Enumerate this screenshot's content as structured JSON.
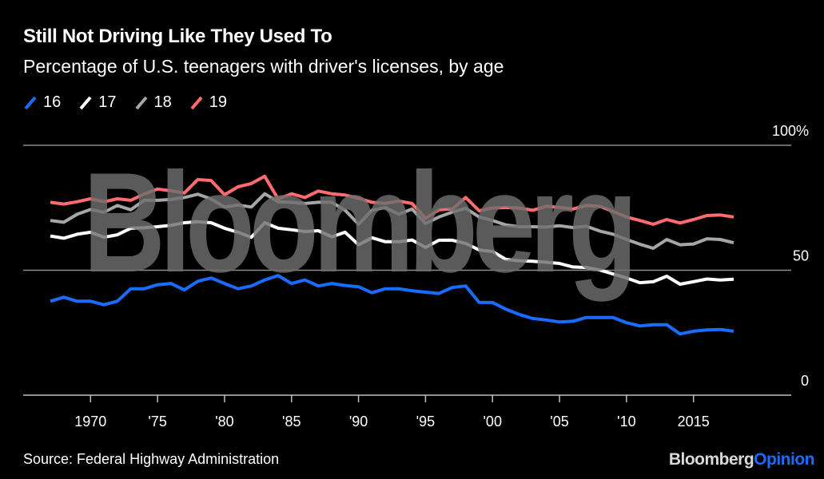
{
  "header": {
    "title": "Still Not Driving Like They Used To",
    "subtitle": "Percentage of U.S. teenagers with driver's licenses, by age"
  },
  "footer": {
    "source": "Source: Federal Highway Administration",
    "brand_primary": "Bloomberg",
    "brand_secondary": "Opinion"
  },
  "watermark": "Bloomberg",
  "chart_data": {
    "type": "line",
    "title": "Still Not Driving Like They Used To",
    "subtitle": "Percentage of U.S. teenagers with driver's licenses, by age",
    "xlabel": "",
    "ylabel": "",
    "x": [
      1967,
      1968,
      1969,
      1970,
      1971,
      1972,
      1973,
      1974,
      1975,
      1976,
      1977,
      1978,
      1979,
      1980,
      1981,
      1982,
      1983,
      1984,
      1985,
      1986,
      1987,
      1988,
      1989,
      1990,
      1991,
      1992,
      1993,
      1994,
      1995,
      1996,
      1997,
      1998,
      1999,
      2000,
      2001,
      2002,
      2003,
      2004,
      2005,
      2006,
      2007,
      2008,
      2009,
      2010,
      2011,
      2012,
      2013,
      2014,
      2015,
      2016,
      2017,
      2018
    ],
    "xlim": [
      1967,
      2018
    ],
    "ylim": [
      0,
      100
    ],
    "x_ticks": [
      1970,
      1975,
      1980,
      1985,
      1990,
      1995,
      2000,
      2005,
      2010,
      2015
    ],
    "x_tick_labels": [
      "1970",
      "'75",
      "'80",
      "'85",
      "'90",
      "'95",
      "'00",
      "'05",
      "'10",
      "2015"
    ],
    "y_ticks": [
      0,
      50,
      100
    ],
    "y_tick_labels": [
      "0",
      "50",
      "100%"
    ],
    "grid": true,
    "legend_position": "top-left",
    "series": [
      {
        "name": "16",
        "color": "#1a6cff",
        "values": [
          37.6,
          39.2,
          37.6,
          37.6,
          36.2,
          37.6,
          42.6,
          42.6,
          44.2,
          44.7,
          42.1,
          45.6,
          46.9,
          44.7,
          42.6,
          43.7,
          46.1,
          47.9,
          44.7,
          46.1,
          43.7,
          44.7,
          43.9,
          43.4,
          41.0,
          42.6,
          42.6,
          41.8,
          41.2,
          40.7,
          43.1,
          43.7,
          37.1,
          37.1,
          34.4,
          32.3,
          30.7,
          30.1,
          29.3,
          29.6,
          31.1,
          31.1,
          31.1,
          29.0,
          27.7,
          28.2,
          28.2,
          24.5,
          25.6,
          26.1,
          26.3,
          25.6
        ]
      },
      {
        "name": "17",
        "color": "#ffffff",
        "values": [
          63.7,
          62.8,
          64.4,
          65.2,
          63.2,
          64.2,
          66.8,
          67.0,
          67.4,
          68.0,
          69.0,
          69.4,
          69.0,
          66.8,
          65.2,
          63.2,
          69.0,
          66.8,
          66.2,
          65.5,
          65.8,
          63.4,
          65.2,
          60.2,
          63.0,
          61.4,
          61.4,
          62.1,
          59.1,
          62.0,
          62.0,
          60.7,
          58.1,
          57.5,
          54.3,
          53.8,
          53.6,
          53.2,
          52.7,
          51.3,
          51.1,
          50.1,
          48.5,
          46.9,
          45.0,
          45.4,
          47.6,
          44.4,
          45.4,
          46.5,
          46.1,
          46.4
        ]
      },
      {
        "name": "18",
        "color": "#a6a6a6",
        "values": [
          69.9,
          69.2,
          72.4,
          74.3,
          73.2,
          75.9,
          74.2,
          78.0,
          78.0,
          78.3,
          79.1,
          80.4,
          78.5,
          75.3,
          76.1,
          75.3,
          80.6,
          77.4,
          77.2,
          76.7,
          77.2,
          77.2,
          74.0,
          68.4,
          74.0,
          75.1,
          72.4,
          74.5,
          68.7,
          71.3,
          73.3,
          74.8,
          71.3,
          69.9,
          68.1,
          67.4,
          67.4,
          67.3,
          67.8,
          67.1,
          67.6,
          65.7,
          64.4,
          62.3,
          60.4,
          58.8,
          62.3,
          60.2,
          60.5,
          62.6,
          62.3,
          61.0
        ]
      },
      {
        "name": "19",
        "color": "#ff6b6e",
        "values": [
          77.2,
          76.5,
          77.4,
          78.6,
          77.4,
          78.6,
          78.0,
          80.5,
          82.5,
          81.8,
          80.9,
          86.3,
          85.9,
          80.2,
          83.4,
          84.7,
          87.6,
          78.5,
          80.6,
          79.1,
          81.7,
          80.6,
          80.1,
          78.8,
          77.2,
          76.7,
          77.7,
          76.7,
          70.8,
          74.2,
          74.5,
          79.1,
          73.8,
          74.9,
          75.1,
          74.9,
          74.0,
          75.6,
          75.1,
          74.5,
          75.9,
          75.6,
          73.5,
          71.3,
          69.9,
          68.4,
          70.3,
          68.9,
          70.3,
          71.9,
          72.1,
          71.3
        ]
      }
    ]
  }
}
